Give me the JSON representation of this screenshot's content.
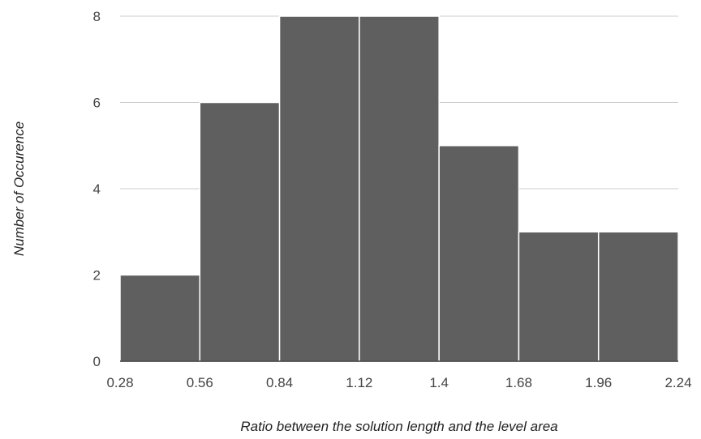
{
  "chart_data": {
    "type": "bar",
    "bin_edges": [
      0.28,
      0.56,
      0.84,
      1.12,
      1.4,
      1.68,
      1.96,
      2.24
    ],
    "x_tick_labels": [
      "0.28",
      "0.56",
      "0.84",
      "1.12",
      "1.4",
      "1.68",
      "1.96",
      "2.24"
    ],
    "values": [
      2,
      6,
      8,
      8,
      5,
      3,
      3
    ],
    "y_ticks": [
      0,
      2,
      4,
      6,
      8
    ],
    "y_tick_labels": [
      "0",
      "2",
      "4",
      "6",
      "8"
    ],
    "xlabel": "Ratio between the solution length and the level area",
    "ylabel": "Number of Occurence",
    "xlim": [
      0.28,
      2.24
    ],
    "ylim": [
      0,
      8
    ],
    "grid": true,
    "legend": "none",
    "colors": {
      "bar": "#5f5f5f",
      "bar_separator": "#ffffff",
      "grid": "#cccccc",
      "axis": "#333333"
    }
  }
}
